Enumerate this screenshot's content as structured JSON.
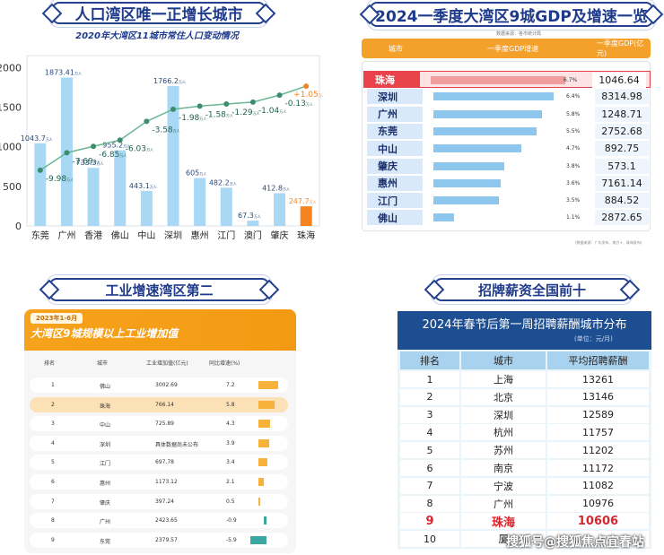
{
  "panel1": {
    "banner": "人口湾区唯一正增长城市",
    "subtitle": "2020年大湾区11城市常住人口变动情况",
    "unit": "万人"
  },
  "panel2": {
    "banner": "2024一季度大湾区9城GDP及增速一览",
    "source_top": "数据来源：各市统计局",
    "header": {
      "city": "城市",
      "growth": "一季度GDP增速",
      "gdp": "一季度GDP(亿元)"
    },
    "footer": "(数据来源：广东发布、南方+、珠海发布)"
  },
  "panel3": {
    "banner": "工业增速湾区第二",
    "tag": "2023年1-6月",
    "title": "大湾区9城规模以上工业增加值",
    "headers": {
      "rank": "排名",
      "city": "城市",
      "value": "工业增加值(亿元)",
      "growth": "同比增速(%)"
    }
  },
  "panel4": {
    "banner": "招牌薪资全国前十",
    "title": "2024年春节后第一周招聘薪酬城市分布",
    "unit": "(单位：元/月)",
    "headers": {
      "rank": "排名",
      "city": "城市",
      "salary": "平均招聘薪酬"
    },
    "watermark": "搜狐号@搜狐焦点宜春站"
  },
  "chart_data": [
    {
      "type": "bar",
      "title": "2020年大湾区11城市常住人口变动情况",
      "categories": [
        "东莞",
        "广州",
        "香港",
        "佛山",
        "中山",
        "深圳",
        "惠州",
        "江门",
        "澳门",
        "肇庆",
        "珠海"
      ],
      "bar_labels": [
        "1043.7万人",
        "1873.41万人",
        "733.3万人",
        "955.2万人",
        "443.1万人",
        "1766.2万人",
        "605万人",
        "482.2万人",
        "67.3万人",
        "412.8万人",
        "247.7万人"
      ],
      "series": [
        {
          "name": "常住人口",
          "values": [
            1043.7,
            1873.41,
            733.3,
            955.2,
            443.1,
            1766.2,
            605,
            482.2,
            67.3,
            412.8,
            247.7
          ]
        },
        {
          "name": "人口变动",
          "values": [
            -9.98,
            -7.69,
            -6.85,
            -6.03,
            -3.58,
            -1.98,
            -1.58,
            -1.29,
            -1.04,
            -0.13,
            1.05
          ],
          "labels": [
            "-9.98万人",
            "-7.69万人",
            "-6.85万人",
            "-6.03万人",
            "-3.58万人",
            "-1.98万人",
            "-1.58万人",
            "-1.29万人",
            "-1.04万人",
            "-0.13万人",
            "+1.05万人"
          ]
        }
      ],
      "yticks": [
        0,
        500,
        1000,
        1500,
        2000
      ],
      "ylim": [
        0,
        2150
      ],
      "colors": {
        "bar": "#a9d8f5",
        "highlight": "#f5841f",
        "line": "#6bb794",
        "negative_text": "#1d5f4f",
        "positive_text": "#f5841f"
      }
    },
    {
      "type": "table",
      "title": "2024一季度大湾区9城GDP及增速一览",
      "columns": [
        "城市",
        "一季度GDP增速",
        "一季度GDP(亿元)"
      ],
      "rows": [
        {
          "city": "珠海",
          "growth": 6.7,
          "growth_label": "6.7%",
          "gdp": "1046.64",
          "highlight": true
        },
        {
          "city": "深圳",
          "growth": 6.4,
          "growth_label": "6.4%",
          "gdp": "8314.98"
        },
        {
          "city": "广州",
          "growth": 5.8,
          "growth_label": "5.8%",
          "gdp": "1248.71"
        },
        {
          "city": "东莞",
          "growth": 5.5,
          "growth_label": "5.5%",
          "gdp": "2752.68"
        },
        {
          "city": "中山",
          "growth": 4.7,
          "growth_label": "4.7%",
          "gdp": "892.75"
        },
        {
          "city": "肇庆",
          "growth": 3.8,
          "growth_label": "3.8%",
          "gdp": "573.1"
        },
        {
          "city": "惠州",
          "growth": 3.6,
          "growth_label": "3.6%",
          "gdp": "7161.14"
        },
        {
          "city": "江门",
          "growth": 3.5,
          "growth_label": "3.5%",
          "gdp": "884.52"
        },
        {
          "city": "佛山",
          "growth": 1.1,
          "growth_label": "1.1%",
          "gdp": "2872.65"
        }
      ],
      "colors": {
        "bar": "#8ec7ee",
        "highlight": "#e8434a",
        "header": "#f4a12c"
      }
    },
    {
      "type": "table",
      "title": "大湾区9城规模以上工业增加值",
      "columns": [
        "排名",
        "城市",
        "工业增加值(亿元)",
        "同比增速(%)"
      ],
      "rows": [
        {
          "rank": "1",
          "city": "佛山",
          "value": "3002.69",
          "growth": 7.2
        },
        {
          "rank": "2",
          "city": "珠海",
          "value": "766.14",
          "growth": 5.8,
          "highlight": true
        },
        {
          "rank": "3",
          "city": "中山",
          "value": "725.89",
          "growth": 4.3
        },
        {
          "rank": "4",
          "city": "深圳",
          "value": "具体数据尚未公布",
          "growth": 3.9
        },
        {
          "rank": "5",
          "city": "江门",
          "value": "697.78",
          "growth": 3.4
        },
        {
          "rank": "6",
          "city": "惠州",
          "value": "1173.12",
          "growth": 2.1
        },
        {
          "rank": "7",
          "city": "肇庆",
          "value": "397.24",
          "growth": 0.5
        },
        {
          "rank": "8",
          "city": "广州",
          "value": "2423.65",
          "growth": -0.9
        },
        {
          "rank": "9",
          "city": "东莞",
          "value": "2379.57",
          "growth": -5.9
        }
      ],
      "colors": {
        "positive": "#f7b23b",
        "negative": "#3aa7a3",
        "highlight": "#fde1b6"
      }
    },
    {
      "type": "table",
      "title": "2024年春节后第一周招聘薪酬城市分布",
      "columns": [
        "排名",
        "城市",
        "平均招聘薪酬"
      ],
      "rows": [
        {
          "rank": "1",
          "city": "上海",
          "salary": "13261"
        },
        {
          "rank": "2",
          "city": "北京",
          "salary": "13146"
        },
        {
          "rank": "3",
          "city": "深圳",
          "salary": "12589"
        },
        {
          "rank": "4",
          "city": "杭州",
          "salary": "11757"
        },
        {
          "rank": "5",
          "city": "苏州",
          "salary": "11202"
        },
        {
          "rank": "6",
          "city": "南京",
          "salary": "11172"
        },
        {
          "rank": "7",
          "city": "宁波",
          "salary": "11082"
        },
        {
          "rank": "8",
          "city": "广州",
          "salary": "10976"
        },
        {
          "rank": "9",
          "city": "珠海",
          "salary": "10606",
          "highlight": true
        },
        {
          "rank": "10",
          "city": "厦",
          "salary": ""
        }
      ],
      "colors": {
        "header_bg": "#1e4e92",
        "row_header": "#a9d2ef",
        "highlight_text": "#d8262f"
      }
    }
  ]
}
